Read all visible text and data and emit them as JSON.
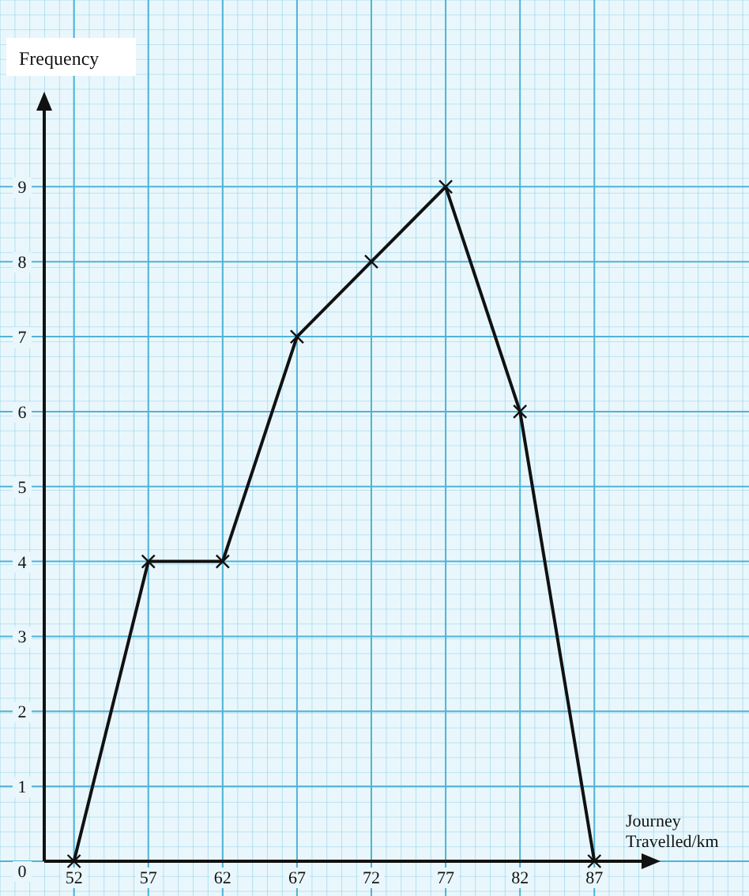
{
  "chart_data": {
    "type": "line",
    "ylabel": "Frequency",
    "xlabel": "Journey\nTravelled/km",
    "x": [
      52,
      57,
      62,
      67,
      72,
      77,
      82,
      87
    ],
    "series": [
      {
        "color": "#111111",
        "values": [
          0,
          4,
          4,
          7,
          8,
          9,
          6,
          0
        ]
      }
    ],
    "xlim": [
      50,
      90.6
    ],
    "xticks": [
      52,
      57,
      62,
      67,
      72,
      77,
      82,
      87
    ],
    "ylim": [
      0,
      10.1
    ],
    "yticks": [
      0,
      1,
      2,
      3,
      4,
      5,
      6,
      7,
      8,
      9
    ],
    "grid": true,
    "marker": "cross",
    "line_style": "solid"
  }
}
